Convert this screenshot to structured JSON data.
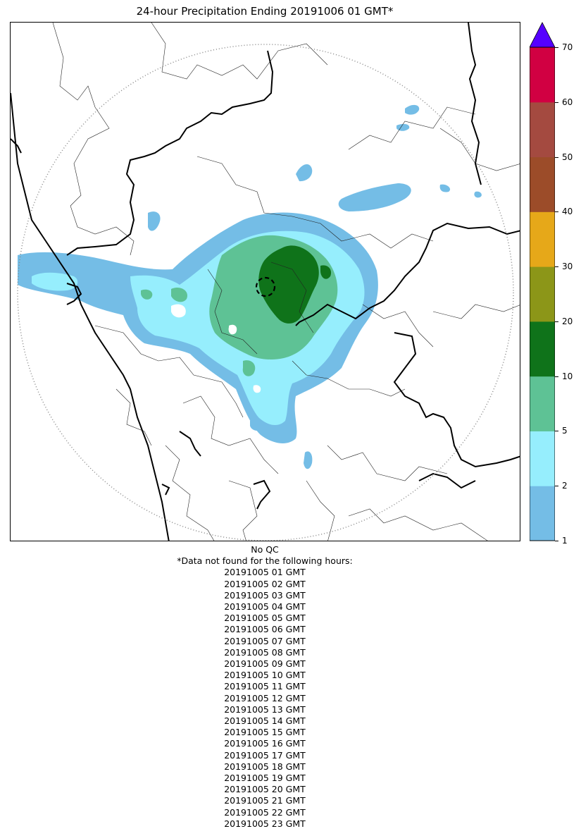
{
  "title": "24-hour Precipitation Ending 20191006 01 GMT*",
  "colorbar": {
    "ticks": [
      "1",
      "2",
      "5",
      "10",
      "20",
      "30",
      "40",
      "50",
      "60",
      "70"
    ],
    "colors": [
      "#74bde6",
      "#96eefd",
      "#5ec295",
      "#0f731a",
      "#8c9618",
      "#e6a819",
      "#9c4c29",
      "#a44a40",
      "#d10042"
    ],
    "extend_color": "#5500ff"
  },
  "notes": {
    "qc": "No QC",
    "missing_header": "*Data not found for the following hours:",
    "missing_hours": [
      "20191005 01 GMT",
      "20191005 02 GMT",
      "20191005 03 GMT",
      "20191005 04 GMT",
      "20191005 05 GMT",
      "20191005 06 GMT",
      "20191005 07 GMT",
      "20191005 08 GMT",
      "20191005 09 GMT",
      "20191005 10 GMT",
      "20191005 11 GMT",
      "20191005 12 GMT",
      "20191005 13 GMT",
      "20191005 14 GMT",
      "20191005 15 GMT",
      "20191005 16 GMT",
      "20191005 17 GMT",
      "20191005 18 GMT",
      "20191005 19 GMT",
      "20191005 20 GMT",
      "20191005 21 GMT",
      "20191005 22 GMT",
      "20191005 23 GMT"
    ]
  },
  "map": {
    "range_ring_style": "dotted",
    "radar_site_marker": "dashed-circle",
    "colors": {
      "coast": "#000000",
      "state_border": "#000000",
      "district_border": "#222222",
      "range_ring": "#888888"
    }
  }
}
